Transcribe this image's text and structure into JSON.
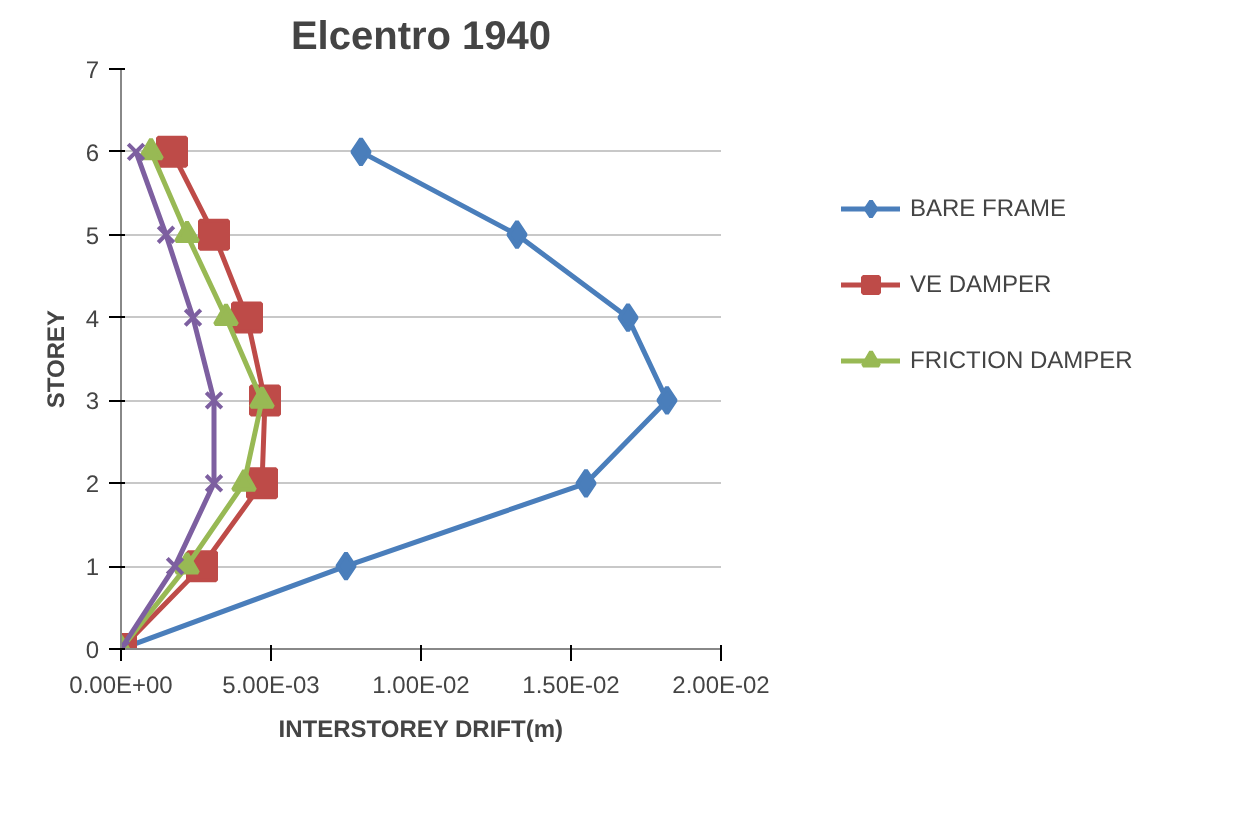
{
  "chart_data": {
    "type": "line",
    "title": "Elcentro 1940",
    "xlabel": "INTERSTOREY DRIFT(m)",
    "ylabel": "STOREY",
    "series": [
      {
        "name": "BARE FRAME",
        "color": "#4a7ebb",
        "marker": "diamond",
        "x": [
          0,
          0.0075,
          0.0155,
          0.0182,
          0.0169,
          0.0132,
          0.008
        ],
        "values": [
          0,
          1,
          2,
          3,
          4,
          5,
          6
        ]
      },
      {
        "name": "VE DAMPER",
        "color": "#be4b48",
        "marker": "square",
        "x": [
          0,
          0.0027,
          0.0047,
          0.0048,
          0.0042,
          0.0031,
          0.0017
        ],
        "values": [
          0,
          1,
          2,
          3,
          4,
          5,
          6
        ]
      },
      {
        "name": "FRICTION DAMPER",
        "color": "#98b954",
        "marker": "triangle",
        "x": [
          0,
          0.0022,
          0.0041,
          0.0047,
          0.0035,
          0.0022,
          0.001
        ],
        "values": [
          0,
          1,
          2,
          3,
          4,
          5,
          6
        ]
      },
      {
        "color": "#7d5fa0",
        "marker": "x",
        "x": [
          0,
          0.0018,
          0.0031,
          0.0031,
          0.0024,
          0.0015,
          0.0005
        ],
        "values": [
          0,
          1,
          2,
          3,
          4,
          5,
          6
        ]
      }
    ],
    "xlim": [
      0,
      0.02
    ],
    "xticks": [
      {
        "value": 0,
        "label": "0.00E+00"
      },
      {
        "value": 0.005,
        "label": "5.00E-03"
      },
      {
        "value": 0.01,
        "label": "1.00E-02"
      },
      {
        "value": 0.015,
        "label": "1.50E-02"
      },
      {
        "value": 0.02,
        "label": "2.00E-02"
      }
    ],
    "ylim": [
      0,
      7
    ],
    "yticks": [
      0,
      1,
      2,
      3,
      4,
      5,
      6,
      7
    ],
    "grid": "y",
    "legend": "right"
  }
}
